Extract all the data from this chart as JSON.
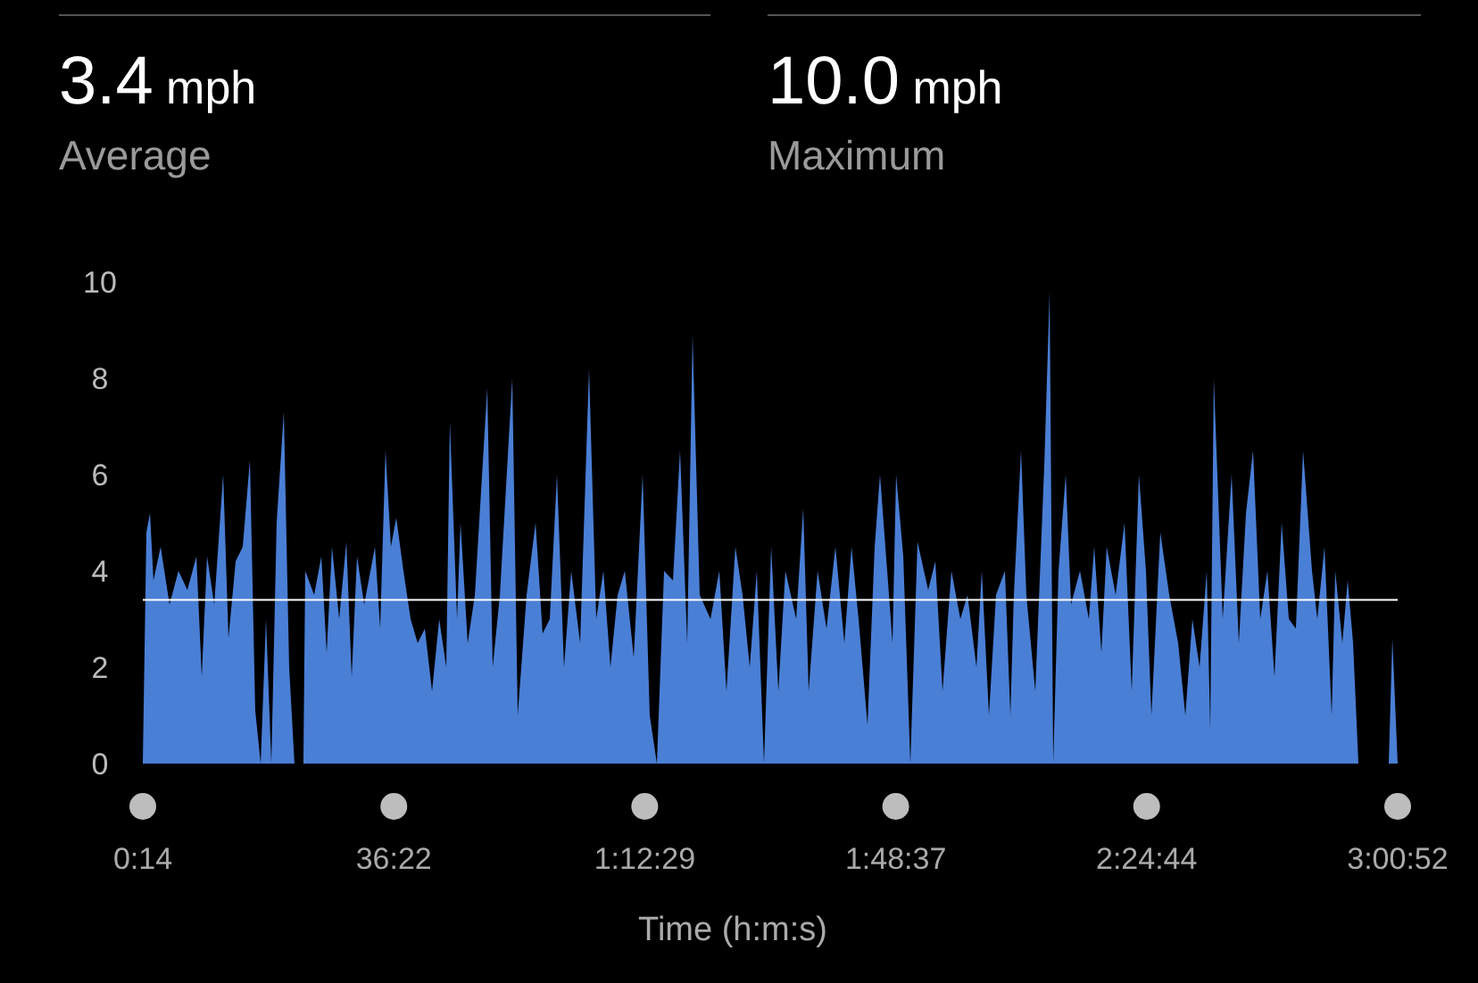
{
  "chart_data": {
    "type": "area",
    "xlabel": "Time (h:m:s)",
    "color": "#4a7fd6",
    "annotations": [
      "3.4 mph",
      "Average",
      "10.0 mph",
      "Maximum"
    ],
    "xlim": [
      14,
      10852
    ],
    "ylim": [
      0,
      10
    ],
    "xticks": [
      {
        "value": 14,
        "label": "0:14"
      },
      {
        "value": 2182,
        "label": "36:22"
      },
      {
        "value": 4349,
        "label": "1:12:29"
      },
      {
        "value": 6517,
        "label": "1:48:37"
      },
      {
        "value": 8684,
        "label": "2:24:44"
      },
      {
        "value": 10852,
        "label": "3:00:52"
      }
    ],
    "yticks": [
      0,
      2,
      4,
      6,
      8,
      10
    ],
    "ref_lines": [
      {
        "axis": "y",
        "value": 3.4,
        "color": "#ffffff"
      }
    ],
    "x": [
      14,
      45,
      76,
      106,
      168,
      245,
      322,
      399,
      477,
      523,
      569,
      631,
      708,
      754,
      816,
      877,
      939,
      985,
      1032,
      1078,
      1124,
      1170,
      1232,
      1278,
      1324,
      1401,
      1417,
      1494,
      1556,
      1602,
      1648,
      1710,
      1772,
      1818,
      1864,
      1926,
      2019,
      2064,
      2110,
      2157,
      2203,
      2265,
      2327,
      2388,
      2450,
      2512,
      2574,
      2635,
      2666,
      2728,
      2758,
      2820,
      2882,
      2989,
      3036,
      3098,
      3205,
      3252,
      3329,
      3406,
      3467,
      3529,
      3591,
      3652,
      3714,
      3791,
      3868,
      3930,
      3992,
      4053,
      4115,
      4177,
      4254,
      4331,
      4392,
      4454,
      4516,
      4593,
      4654,
      4716,
      4762,
      4824,
      4917,
      4993,
      5055,
      5132,
      5194,
      5256,
      5317,
      5379,
      5441,
      5503,
      5564,
      5657,
      5718,
      5765,
      5842,
      5919,
      5996,
      6073,
      6135,
      6196,
      6273,
      6335,
      6381,
      6443,
      6489,
      6520,
      6582,
      6643,
      6705,
      6797,
      6859,
      6921,
      6998,
      7075,
      7137,
      7214,
      7260,
      7322,
      7383,
      7460,
      7507,
      7537,
      7599,
      7645,
      7722,
      7800,
      7846,
      7877,
      7923,
      7985,
      8031,
      8108,
      8185,
      8231,
      8293,
      8339,
      8416,
      8493,
      8555,
      8617,
      8678,
      8725,
      8802,
      8879,
      8956,
      9018,
      9079,
      9141,
      9203,
      9233,
      9264,
      9341,
      9418,
      9480,
      9542,
      9603,
      9665,
      9727,
      9788,
      9850,
      9912,
      9973,
      10035,
      10112,
      10158,
      10220,
      10282,
      10313,
      10374,
      10420,
      10467,
      10513,
      10775,
      10806,
      10852
    ],
    "values": [
      0,
      4.8,
      5.2,
      3.8,
      4.5,
      3.3,
      4.0,
      3.6,
      4.3,
      1.8,
      4.3,
      3.3,
      6.0,
      2.6,
      4.2,
      4.5,
      6.3,
      1.1,
      0,
      3.0,
      0,
      5.0,
      7.3,
      2.0,
      0,
      0,
      4.0,
      3.5,
      4.3,
      2.3,
      4.5,
      3.0,
      4.6,
      1.8,
      4.3,
      3.3,
      4.5,
      2.8,
      6.5,
      4.5,
      5.1,
      4.0,
      3.0,
      2.5,
      2.8,
      1.5,
      3.0,
      2.0,
      7.1,
      3.0,
      5.0,
      2.5,
      3.5,
      7.8,
      2.0,
      3.5,
      8.0,
      1.0,
      3.5,
      5.0,
      2.7,
      3.0,
      6.0,
      2.0,
      4.0,
      2.5,
      8.2,
      3.0,
      4.0,
      2.0,
      3.5,
      4.0,
      2.2,
      6.0,
      1.0,
      0,
      4.0,
      3.8,
      6.5,
      2.5,
      8.9,
      3.5,
      3.0,
      4.0,
      1.5,
      4.5,
      3.5,
      2.0,
      4.0,
      0,
      4.5,
      1.5,
      4.0,
      3.0,
      5.3,
      1.5,
      4.0,
      2.8,
      4.5,
      2.5,
      4.5,
      3.0,
      0.8,
      4.5,
      6.0,
      4.0,
      2.5,
      6.0,
      4.3,
      0,
      4.6,
      3.6,
      4.2,
      1.5,
      4.0,
      3.0,
      3.5,
      2.0,
      4.0,
      1.0,
      3.5,
      4.0,
      1.0,
      3.5,
      6.5,
      3.5,
      1.5,
      6.2,
      9.8,
      0,
      4.0,
      6.0,
      3.3,
      4.0,
      3.0,
      4.5,
      2.3,
      4.5,
      3.5,
      5.0,
      1.5,
      6.0,
      4.0,
      1.0,
      4.8,
      3.5,
      2.5,
      1.0,
      3.0,
      2.0,
      4.0,
      0.7,
      8.0,
      3.0,
      6.0,
      2.5,
      5.2,
      6.5,
      3.0,
      4.0,
      1.8,
      5.0,
      3.0,
      2.8,
      6.5,
      4.0,
      3.0,
      4.5,
      1.0,
      4.0,
      2.5,
      3.8,
      2.5,
      0,
      0,
      2.6,
      0
    ]
  }
}
